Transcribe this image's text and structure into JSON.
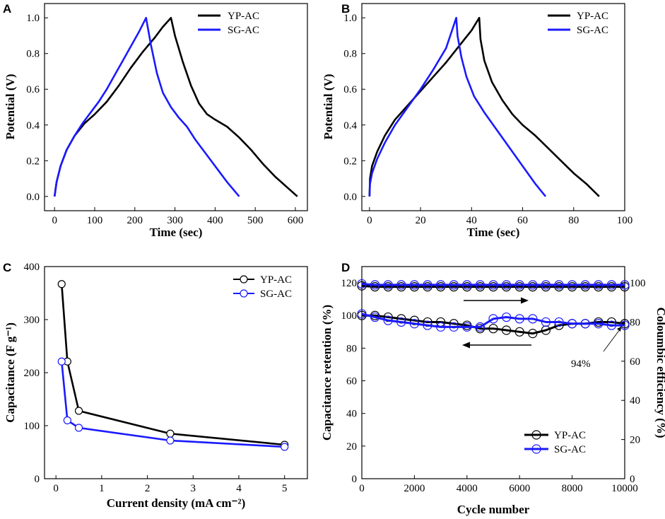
{
  "colors": {
    "yp": "#000000",
    "sg": "#1a1aff"
  },
  "chart_data": [
    {
      "id": "A",
      "panel_label": "A",
      "type": "line",
      "xlabel": "Time (sec)",
      "ylabel": "Potential (V)",
      "xlim": [
        -25,
        630
      ],
      "ylim": [
        -0.08,
        1.08
      ],
      "xticks": [
        0,
        100,
        200,
        300,
        400,
        500,
        600
      ],
      "yticks": [
        0.0,
        0.2,
        0.4,
        0.6,
        0.8,
        1.0
      ],
      "ytick_decimals": 1,
      "legend": [
        "YP-AC",
        "SG-AC"
      ],
      "series": [
        {
          "name": "YP-AC",
          "color": "#000000",
          "x": [
            0,
            5,
            15,
            30,
            50,
            75,
            100,
            130,
            160,
            190,
            220,
            250,
            270,
            290,
            300,
            320,
            340,
            360,
            380,
            400,
            430,
            460,
            490,
            520,
            550,
            580,
            605
          ],
          "y": [
            0.0,
            0.08,
            0.17,
            0.26,
            0.34,
            0.41,
            0.46,
            0.53,
            0.62,
            0.72,
            0.81,
            0.89,
            0.95,
            1.0,
            0.9,
            0.75,
            0.62,
            0.52,
            0.46,
            0.43,
            0.39,
            0.33,
            0.26,
            0.18,
            0.11,
            0.05,
            0.0
          ]
        },
        {
          "name": "SG-AC",
          "color": "#1a1aff",
          "x": [
            0,
            5,
            15,
            30,
            50,
            70,
            90,
            110,
            130,
            150,
            170,
            190,
            210,
            228,
            240,
            255,
            270,
            290,
            310,
            330,
            350,
            370,
            390,
            410,
            430,
            445,
            460
          ],
          "y": [
            0.0,
            0.08,
            0.17,
            0.26,
            0.34,
            0.41,
            0.47,
            0.53,
            0.6,
            0.68,
            0.76,
            0.84,
            0.92,
            1.0,
            0.85,
            0.69,
            0.58,
            0.5,
            0.44,
            0.39,
            0.32,
            0.26,
            0.2,
            0.14,
            0.08,
            0.04,
            0.0
          ]
        }
      ]
    },
    {
      "id": "B",
      "panel_label": "B",
      "type": "line",
      "xlabel": "Time (sec)",
      "ylabel": "Potential (V)",
      "xlim": [
        -3,
        100
      ],
      "ylim": [
        -0.08,
        1.08
      ],
      "xticks": [
        0,
        20,
        40,
        60,
        80,
        100
      ],
      "yticks": [
        0.0,
        0.2,
        0.4,
        0.6,
        0.8,
        1.0
      ],
      "ytick_decimals": 1,
      "legend": [
        "YP-AC",
        "SG-AC"
      ],
      "series": [
        {
          "name": "YP-AC",
          "color": "#000000",
          "x": [
            0,
            0.2,
            1,
            3,
            6,
            10,
            15,
            20,
            25,
            30,
            35,
            40,
            43,
            43.5,
            45,
            48,
            52,
            56,
            60,
            65,
            70,
            75,
            80,
            85,
            90
          ],
          "y": [
            0.0,
            0.1,
            0.17,
            0.25,
            0.34,
            0.43,
            0.51,
            0.59,
            0.67,
            0.75,
            0.84,
            0.93,
            1.0,
            0.88,
            0.76,
            0.64,
            0.54,
            0.46,
            0.4,
            0.34,
            0.27,
            0.2,
            0.13,
            0.07,
            0.0
          ]
        },
        {
          "name": "SG-AC",
          "color": "#1a1aff",
          "x": [
            0,
            0.2,
            1,
            3,
            6,
            10,
            15,
            20,
            25,
            30,
            34,
            34.5,
            36,
            38,
            41,
            45,
            50,
            55,
            60,
            65,
            69
          ],
          "y": [
            0.0,
            0.07,
            0.13,
            0.21,
            0.3,
            0.4,
            0.5,
            0.6,
            0.71,
            0.83,
            1.0,
            0.9,
            0.78,
            0.67,
            0.56,
            0.47,
            0.37,
            0.27,
            0.17,
            0.07,
            0.0
          ]
        }
      ]
    },
    {
      "id": "C",
      "panel_label": "C",
      "type": "line",
      "xlabel": "Current density (mA cm⁻²)",
      "ylabel": "Capacitance (F g⁻¹)",
      "xlim": [
        -0.25,
        5.5
      ],
      "ylim": [
        0,
        400
      ],
      "xticks": [
        0,
        1,
        2,
        3,
        4,
        5
      ],
      "yticks": [
        0,
        100,
        200,
        300,
        400
      ],
      "ytick_decimals": 0,
      "legend": [
        "YP-AC",
        "SG-AC"
      ],
      "series": [
        {
          "name": "YP-AC",
          "color": "#000000",
          "markers": true,
          "x": [
            0.125,
            0.25,
            0.5,
            2.5,
            5
          ],
          "y": [
            367,
            221,
            128,
            85,
            64
          ]
        },
        {
          "name": "SG-AC",
          "color": "#1a1aff",
          "markers": true,
          "x": [
            0.125,
            0.25,
            0.5,
            2.5,
            5
          ],
          "y": [
            221,
            110,
            96,
            72,
            60
          ]
        }
      ]
    },
    {
      "id": "D",
      "panel_label": "D",
      "type": "line",
      "xlabel": "Cycle number",
      "ylabel": "Capacitance retention (%)",
      "y2label": "Coloumbic efficiency (%)",
      "xlim": [
        0,
        10000
      ],
      "ylim": [
        0,
        130
      ],
      "y2lim": [
        0,
        108.33
      ],
      "xticks": [
        0,
        2000,
        4000,
        6000,
        8000,
        10000
      ],
      "yticks": [
        0,
        20,
        40,
        60,
        80,
        100,
        120
      ],
      "y2ticks": [
        0,
        20,
        40,
        60,
        80,
        100
      ],
      "ytick_decimals": 0,
      "legend": [
        "YP-AC",
        "SG-AC"
      ],
      "annotation": "94%",
      "series": [
        {
          "name": "YP-AC retention",
          "color": "#000000",
          "axis": "left",
          "markers": true,
          "x": [
            0,
            500,
            1000,
            1500,
            2000,
            2500,
            3000,
            3500,
            4000,
            4500,
            5000,
            5500,
            6000,
            6500,
            7000,
            7500,
            8000,
            8500,
            9000,
            9500,
            10000
          ],
          "y": [
            100,
            100,
            99,
            98,
            97,
            96,
            96,
            95,
            94,
            92,
            92,
            91,
            90,
            89,
            91,
            94,
            95,
            95,
            96,
            96,
            95
          ]
        },
        {
          "name": "SG-AC retention",
          "color": "#1a1aff",
          "axis": "left",
          "markers": true,
          "x": [
            0,
            500,
            1000,
            1500,
            2000,
            2500,
            3000,
            3500,
            4000,
            4500,
            5000,
            5500,
            6000,
            6500,
            7000,
            7500,
            8000,
            8500,
            9000,
            9500,
            10000
          ],
          "y": [
            101,
            99,
            97,
            96,
            95,
            94,
            93,
            93,
            93,
            93,
            98,
            99,
            98,
            98,
            96,
            96,
            95,
            95,
            95,
            94,
            94
          ]
        },
        {
          "name": "YP-AC efficiency",
          "color": "#000000",
          "axis": "right",
          "markers": true,
          "x": [
            0,
            500,
            1000,
            1500,
            2000,
            2500,
            3000,
            3500,
            4000,
            4500,
            5000,
            5500,
            6000,
            6500,
            7000,
            7500,
            8000,
            8500,
            9000,
            9500,
            10000
          ],
          "y": [
            98.5,
            98,
            98,
            98,
            98,
            98,
            98,
            98,
            98,
            98,
            98,
            98,
            98,
            98,
            98,
            98,
            98,
            98,
            98,
            98,
            98
          ]
        },
        {
          "name": "SG-AC efficiency",
          "color": "#1a1aff",
          "axis": "right",
          "markers": true,
          "x": [
            0,
            500,
            1000,
            1500,
            2000,
            2500,
            3000,
            3500,
            4000,
            4500,
            5000,
            5500,
            6000,
            6500,
            7000,
            7500,
            8000,
            8500,
            9000,
            9500,
            10000
          ],
          "y": [
            99.5,
            99,
            99,
            99,
            99,
            99,
            99,
            99,
            99,
            99,
            99,
            99,
            99,
            99,
            99,
            99,
            99,
            99,
            99,
            99,
            99
          ]
        }
      ]
    }
  ]
}
